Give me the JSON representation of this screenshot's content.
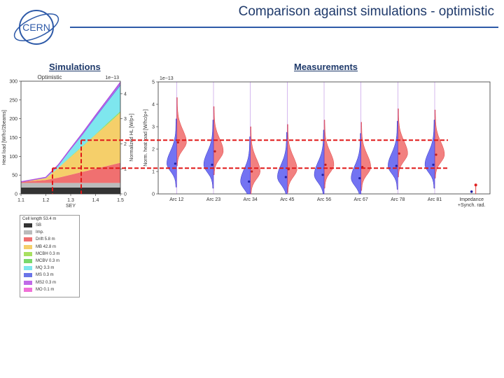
{
  "header": {
    "title": "Comparison against simulations - optimistic",
    "logo_text": "CERN"
  },
  "labels": {
    "simulations": "Simulations",
    "measurements": "Measurements"
  },
  "chart_data": [
    {
      "type": "area",
      "title": "Optimistic",
      "scale_label": "1e−13",
      "xlabel": "SEY",
      "ylabel": "Heat load [W/hc/2beams]",
      "ylabel2": "Normalized HL [W/p+]",
      "xlim": [
        1.1,
        1.5
      ],
      "ylim": [
        0,
        300
      ],
      "ylim2": [
        0,
        4.5
      ],
      "xticks": [
        "1.1",
        "1.2",
        "1.3",
        "1.4",
        "1.5"
      ],
      "yticks": [
        "0",
        "50",
        "100",
        "150",
        "200",
        "250",
        "300"
      ],
      "yticks2": [
        "0",
        "1",
        "2",
        "3",
        "4"
      ],
      "x": [
        1.1,
        1.2,
        1.25,
        1.3,
        1.35,
        1.4,
        1.45,
        1.5
      ],
      "series": [
        {
          "name": "SB",
          "color": "#333333",
          "values": [
            17,
            17,
            17,
            17,
            17,
            17,
            17,
            17
          ]
        },
        {
          "name": "Imp.",
          "color": "#bbbbbb",
          "values": [
            12,
            12,
            12,
            12,
            12,
            12,
            12,
            12
          ]
        },
        {
          "name": "Drift 5.8 m",
          "color": "#f07070",
          "values": [
            3,
            8,
            14,
            22,
            30,
            38,
            46,
            54
          ]
        },
        {
          "name": "MB 42.8 m",
          "color": "#f5cf6a",
          "values": [
            0,
            5,
            26,
            47,
            68,
            90,
            111,
            133
          ]
        },
        {
          "name": "MCBH 0.3 m",
          "color": "#a8e060",
          "values": [
            0,
            0,
            0,
            1,
            1,
            1,
            2,
            2
          ]
        },
        {
          "name": "MCBV 0.3 m",
          "color": "#7ad86c",
          "values": [
            0,
            0,
            0,
            1,
            1,
            1,
            2,
            2
          ]
        },
        {
          "name": "MQ 3.3 m",
          "color": "#7ee6ee",
          "values": [
            0,
            2,
            6,
            18,
            30,
            44,
            56,
            68
          ]
        },
        {
          "name": "MS 0.3 m",
          "color": "#6a74e8",
          "values": [
            0,
            0,
            1,
            1,
            2,
            3,
            3,
            4
          ]
        },
        {
          "name": "MS2 0.3 m",
          "color": "#c06ae8",
          "values": [
            0,
            0,
            1,
            1,
            2,
            2,
            3,
            3
          ]
        },
        {
          "name": "MO 0.1 m",
          "color": "#f070d8",
          "values": [
            0,
            0,
            0,
            1,
            1,
            1,
            1,
            2
          ]
        }
      ],
      "legend_title": "Cell length 53.4 m",
      "legend_location": "below"
    },
    {
      "type": "violin",
      "scale_label": "1e−13",
      "ylabel": "Norm. heat load [W/hc/p+]",
      "ylim": [
        0,
        5
      ],
      "yticks": [
        "0",
        "1",
        "2",
        "3",
        "4",
        "5"
      ],
      "categories": [
        "Arc 12",
        "Arc 23",
        "Arc 34",
        "Arc 45",
        "Arc 56",
        "Arc 67",
        "Arc 78",
        "Arc 81",
        "Impedance +Synch. rad."
      ],
      "blue_medians": [
        1.35,
        1.3,
        0.55,
        0.75,
        0.85,
        0.7,
        1.25,
        1.3,
        0.1
      ],
      "red_medians": [
        2.3,
        1.9,
        1.0,
        1.1,
        1.3,
        1.2,
        1.8,
        1.75,
        0.4
      ],
      "reference_lines": [
        2.4,
        1.15
      ]
    }
  ]
}
